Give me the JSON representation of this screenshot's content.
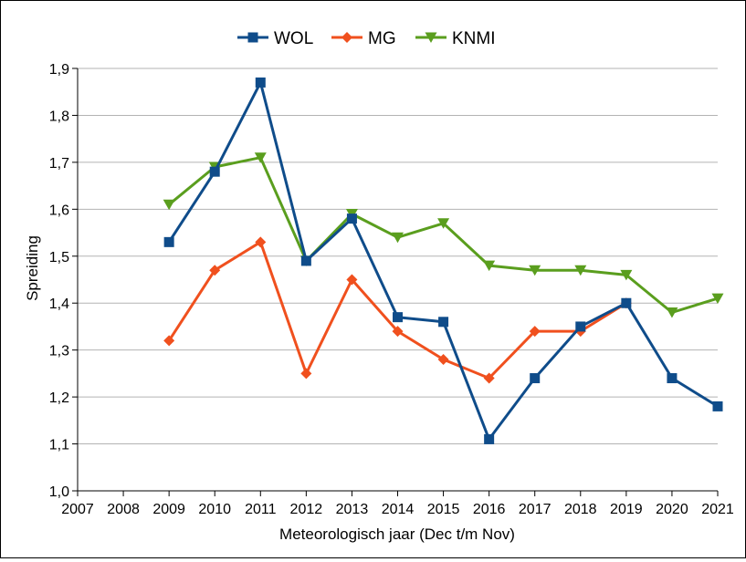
{
  "chart_data": {
    "type": "line",
    "title": "",
    "xlabel": "Meteorologisch jaar (Dec t/m Nov)",
    "ylabel": "Spreiding",
    "xlim": [
      2007,
      2021
    ],
    "ylim": [
      1.0,
      1.9
    ],
    "x_ticks": [
      "2007",
      "2008",
      "2009",
      "2010",
      "2011",
      "2012",
      "2013",
      "2014",
      "2015",
      "2016",
      "2017",
      "2018",
      "2019",
      "2020",
      "2021"
    ],
    "y_ticks": [
      "1,0",
      "1,1",
      "1,2",
      "1,3",
      "1,4",
      "1,5",
      "1,6",
      "1,7",
      "1,8",
      "1,9"
    ],
    "grid": "horizontal",
    "legend_position": "top-center",
    "series": [
      {
        "name": "WOL",
        "color": "#0f4c8a",
        "marker": "square",
        "x": [
          2009,
          2010,
          2011,
          2012,
          2013,
          2014,
          2015,
          2016,
          2017,
          2018,
          2019,
          2020,
          2021
        ],
        "values": [
          1.53,
          1.68,
          1.87,
          1.49,
          1.58,
          1.37,
          1.36,
          1.11,
          1.24,
          1.35,
          1.4,
          1.24,
          1.18
        ]
      },
      {
        "name": "MG",
        "color": "#f0501e",
        "marker": "diamond",
        "x": [
          2009,
          2010,
          2011,
          2012,
          2013,
          2014,
          2015,
          2016,
          2017,
          2018,
          2019
        ],
        "values": [
          1.32,
          1.47,
          1.53,
          1.25,
          1.45,
          1.34,
          1.28,
          1.24,
          1.34,
          1.34,
          1.4
        ]
      },
      {
        "name": "KNMI",
        "color": "#5a9e1e",
        "marker": "triangle-down",
        "x": [
          2009,
          2010,
          2011,
          2012,
          2013,
          2014,
          2015,
          2016,
          2017,
          2018,
          2019,
          2020,
          2021
        ],
        "values": [
          1.61,
          1.69,
          1.71,
          1.49,
          1.59,
          1.54,
          1.57,
          1.48,
          1.47,
          1.47,
          1.46,
          1.38,
          1.41
        ]
      }
    ]
  }
}
